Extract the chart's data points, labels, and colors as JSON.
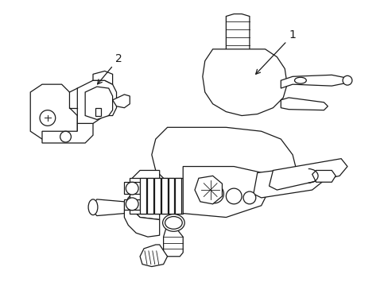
{
  "background_color": "#ffffff",
  "line_color": "#1a1a1a",
  "line_width": 0.9,
  "fig_width": 4.89,
  "fig_height": 3.6,
  "dpi": 100,
  "label1_text": "1",
  "label2_text": "2"
}
